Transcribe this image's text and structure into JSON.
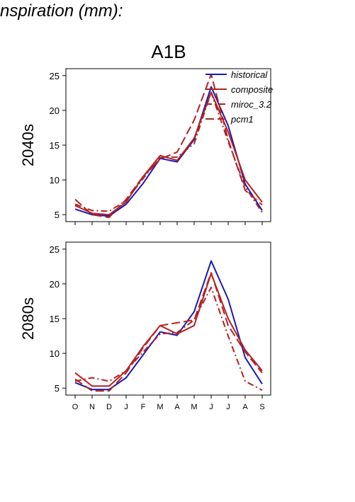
{
  "page": {
    "title": "nspiration (mm):"
  },
  "chart_data": {
    "type": "line",
    "title": "A1B",
    "months": [
      "O",
      "N",
      "D",
      "J",
      "F",
      "M",
      "A",
      "M",
      "J",
      "J",
      "A",
      "S"
    ],
    "ylim": [
      4,
      26
    ],
    "yticks": [
      5,
      10,
      15,
      20,
      25
    ],
    "grid": false,
    "legend_position": "top-right",
    "series_styles": [
      {
        "name": "historical",
        "color": "#1a1ab4",
        "dash": "solid"
      },
      {
        "name": "composite",
        "color": "#b22222",
        "dash": "solid"
      },
      {
        "name": "miroc_3.2",
        "color": "#b22222",
        "dash": "dashdot"
      },
      {
        "name": "pcm1",
        "color": "#b22222",
        "dash": "dashed"
      }
    ],
    "panels": [
      {
        "row_label": "2040s",
        "series": [
          {
            "name": "historical",
            "values": [
              5.8,
              5.0,
              4.8,
              6.5,
              9.5,
              13.1,
              12.6,
              15.8,
              23.4,
              17.8,
              9.4,
              5.6
            ]
          },
          {
            "name": "composite",
            "values": [
              6.3,
              5.2,
              5.0,
              6.8,
              10.5,
              13.5,
              12.8,
              16.0,
              22.6,
              16.9,
              10.0,
              6.8
            ]
          },
          {
            "name": "miroc_3.2",
            "values": [
              6.5,
              5.6,
              5.5,
              7.0,
              10.2,
              13.2,
              13.3,
              15.2,
              22.6,
              15.5,
              9.0,
              5.3
            ]
          },
          {
            "name": "pcm1",
            "values": [
              7.2,
              5.0,
              4.6,
              7.2,
              10.5,
              13.0,
              14.0,
              18.6,
              25.2,
              15.8,
              8.5,
              6.4
            ]
          }
        ]
      },
      {
        "row_label": "2080s",
        "series": [
          {
            "name": "historical",
            "values": [
              5.8,
              4.8,
              4.8,
              6.5,
              9.8,
              13.1,
              12.6,
              16.0,
              23.3,
              17.8,
              9.4,
              5.6
            ]
          },
          {
            "name": "composite",
            "values": [
              7.2,
              5.3,
              5.3,
              7.5,
              11.0,
              14.0,
              12.8,
              14.0,
              21.5,
              15.0,
              10.5,
              7.5
            ]
          },
          {
            "name": "miroc_3.2",
            "values": [
              6.0,
              6.5,
              6.0,
              7.5,
              10.2,
              12.8,
              13.0,
              14.8,
              19.5,
              12.5,
              6.0,
              4.7
            ]
          },
          {
            "name": "pcm1",
            "values": [
              6.3,
              4.6,
              4.6,
              7.2,
              10.8,
              14.0,
              14.4,
              14.8,
              21.6,
              14.0,
              10.2,
              7.2
            ]
          }
        ]
      }
    ]
  }
}
